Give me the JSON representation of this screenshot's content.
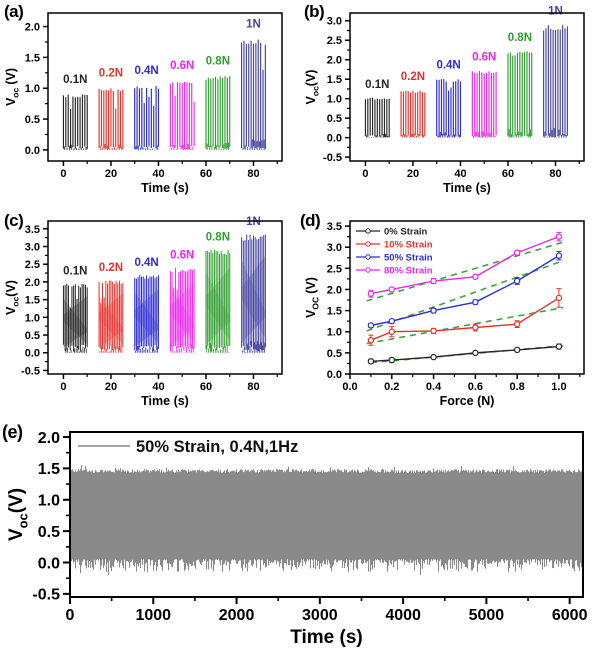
{
  "chart_data": [
    {
      "panel_label": "(a)",
      "type": "burst",
      "xlabel": "Time (s)",
      "ylabel": {
        "main": "V",
        "sub": "oc",
        "rest": " (V)"
      },
      "xlim": [
        -6.5,
        92
      ],
      "ylim": [
        -0.18,
        2.22
      ],
      "xticks": [
        0,
        20,
        40,
        60,
        80
      ],
      "xtick_labels": [
        "0",
        "20",
        "40",
        "60",
        "80"
      ],
      "yticks": [
        0,
        0.5,
        1,
        1.5,
        2
      ],
      "ytick_labels": [
        "0.0",
        "0.5",
        "1.0",
        "1.5",
        "2.0"
      ],
      "xminor": 10,
      "yminor": 0.25,
      "spikes": 11,
      "label_offset": 0.14,
      "wedge": false,
      "bursts": [
        {
          "label": "0.1N",
          "color": "#262626",
          "t_start": 0,
          "t_end": 10,
          "amplitude": 0.9
        },
        {
          "label": "0.2N",
          "color": "#e8302a",
          "t_start": 15,
          "t_end": 25,
          "amplitude": 1.0
        },
        {
          "label": "0.4N",
          "color": "#2c2cd8",
          "t_start": 30,
          "t_end": 40,
          "amplitude": 1.04
        },
        {
          "label": "0.6N",
          "color": "#ee24ee",
          "t_start": 45,
          "t_end": 55,
          "amplitude": 1.12
        },
        {
          "label": "0.8N",
          "color": "#2f9e2f",
          "t_start": 60,
          "t_end": 70,
          "amplitude": 1.2
        },
        {
          "label": "1N",
          "color": "#44449f",
          "t_start": 75,
          "t_end": 85,
          "amplitude": 1.8
        }
      ]
    },
    {
      "panel_label": "(b)",
      "type": "burst",
      "xlabel": "Time (s)",
      "ylabel": {
        "main": "V",
        "sub": "oc",
        "rest": "(V)"
      },
      "xlim": [
        -6.5,
        92
      ],
      "ylim": [
        -0.6,
        3.2
      ],
      "xticks": [
        0,
        20,
        40,
        60,
        80
      ],
      "xtick_labels": [
        "0",
        "20",
        "40",
        "60",
        "80"
      ],
      "yticks": [
        -0.5,
        0,
        0.5,
        1,
        1.5,
        2,
        2.5,
        3
      ],
      "ytick_labels": [
        "-0.5",
        "0.0",
        "0.5",
        "1.0",
        "1.5",
        "2.0",
        "2.5",
        "3.0"
      ],
      "xminor": 10,
      "yminor": 0.25,
      "spikes": 11,
      "label_offset": 0.18,
      "wedge": false,
      "bursts": [
        {
          "label": "0.1N",
          "color": "#262626",
          "t_start": 0,
          "t_end": 10,
          "amplitude": 1.02
        },
        {
          "label": "0.2N",
          "color": "#e8302a",
          "t_start": 15,
          "t_end": 25,
          "amplitude": 1.22
        },
        {
          "label": "0.4N",
          "color": "#2c2cd8",
          "t_start": 30,
          "t_end": 40,
          "amplitude": 1.52
        },
        {
          "label": "0.6N",
          "color": "#ee24ee",
          "t_start": 45,
          "t_end": 55,
          "amplitude": 1.72
        },
        {
          "label": "0.8N",
          "color": "#2f9e2f",
          "t_start": 60,
          "t_end": 70,
          "amplitude": 2.22
        },
        {
          "label": "1N",
          "color": "#44449f",
          "t_start": 75,
          "t_end": 85,
          "amplitude": 2.9
        }
      ]
    },
    {
      "panel_label": "(c)",
      "type": "burst",
      "xlabel": "Time (s)",
      "ylabel": {
        "main": "V",
        "sub": "oc",
        "rest": "(V)"
      },
      "xlim": [
        -6.5,
        92
      ],
      "ylim": [
        -0.6,
        3.72
      ],
      "xticks": [
        0,
        20,
        40,
        60,
        80
      ],
      "xtick_labels": [
        "0",
        "20",
        "40",
        "60",
        "80"
      ],
      "yticks": [
        -0.5,
        0,
        0.5,
        1,
        1.5,
        2,
        2.5,
        3,
        3.5
      ],
      "ytick_labels": [
        "-0.5",
        "0.0",
        "0.5",
        "1.0",
        "1.5",
        "2.0",
        "2.5",
        "3.0",
        "3.5"
      ],
      "xminor": 10,
      "yminor": 0.25,
      "spikes": 15,
      "label_offset": 0.17,
      "wedge": true,
      "bursts": [
        {
          "label": "0.1N",
          "color": "#262626",
          "t_start": 0,
          "t_end": 10,
          "amplitude": 1.95
        },
        {
          "label": "0.2N",
          "color": "#e8302a",
          "t_start": 15,
          "t_end": 25,
          "amplitude": 2.05
        },
        {
          "label": "0.4N",
          "color": "#2c2cd8",
          "t_start": 30,
          "t_end": 40,
          "amplitude": 2.2
        },
        {
          "label": "0.6N",
          "color": "#ee24ee",
          "t_start": 45,
          "t_end": 55,
          "amplitude": 2.4
        },
        {
          "label": "0.8N",
          "color": "#2f9e2f",
          "t_start": 60,
          "t_end": 70,
          "amplitude": 2.92
        },
        {
          "label": "1N",
          "color": "#44449f",
          "t_start": 75,
          "t_end": 85,
          "amplitude": 3.35
        }
      ]
    },
    {
      "panel_label": "(d)",
      "type": "line",
      "xlabel": "Force (N)",
      "ylabel": {
        "main": "V",
        "sub": "OC",
        "rest": " (V)"
      },
      "xlim": [
        0,
        1.12
      ],
      "ylim": [
        0,
        3.62
      ],
      "xticks": [
        0,
        0.2,
        0.4,
        0.6,
        0.8,
        1.0
      ],
      "xtick_labels": [
        "0.0",
        "0.2",
        "0.4",
        "0.6",
        "0.8",
        "1.0"
      ],
      "yticks": [
        0,
        0.5,
        1,
        1.5,
        2,
        2.5,
        3,
        3.5
      ],
      "ytick_labels": [
        "0.0",
        "0.5",
        "1.0",
        "1.5",
        "2.0",
        "2.5",
        "3.0",
        "3.5"
      ],
      "xminor": 0.1,
      "yminor": 0.25,
      "x": [
        0.1,
        0.2,
        0.4,
        0.6,
        0.8,
        1.0
      ],
      "series": [
        {
          "name": "0% Strain",
          "color": "#262626",
          "values": [
            0.3,
            0.33,
            0.4,
            0.5,
            0.57,
            0.65
          ],
          "errors": [
            0.05,
            0.05,
            0.04,
            0.04,
            0.04,
            0.06
          ]
        },
        {
          "name": "10% Strain",
          "color": "#e8302a",
          "values": [
            0.8,
            1.0,
            1.02,
            1.1,
            1.18,
            1.8
          ],
          "errors": [
            0.12,
            0.12,
            0.06,
            0.08,
            0.08,
            0.22
          ]
        },
        {
          "name": "50% Strain",
          "color": "#2c2cd8",
          "values": [
            1.15,
            1.25,
            1.5,
            1.7,
            2.2,
            2.8
          ],
          "errors": [
            0.05,
            0.04,
            0.05,
            0.05,
            0.08,
            0.1
          ]
        },
        {
          "name": "80% Strain",
          "color": "#ee24ee",
          "values": [
            1.9,
            2.0,
            2.2,
            2.3,
            2.87,
            3.25
          ],
          "errors": [
            0.08,
            0.04,
            0.06,
            0.04,
            0.05,
            0.1
          ]
        }
      ],
      "fit_lines": {
        "color": "#3aa63a",
        "segments": [
          [
            0.1,
            0.27,
            1.02,
            0.67
          ],
          [
            0.08,
            0.72,
            1.02,
            1.57
          ],
          [
            0.08,
            1.02,
            1.02,
            2.68
          ],
          [
            0.08,
            1.73,
            1.02,
            3.12
          ]
        ]
      }
    },
    {
      "panel_label": "(e)",
      "type": "noise",
      "xlabel": "Time (s)",
      "ylabel": {
        "main": "V",
        "sub": "oc",
        "rest": "(V)"
      },
      "xlim": [
        0,
        6160
      ],
      "ylim": [
        -0.55,
        2.08
      ],
      "xticks": [
        0,
        1000,
        2000,
        3000,
        4000,
        5000,
        6000
      ],
      "xtick_labels": [
        "0",
        "1000",
        "2000",
        "3000",
        "4000",
        "5000",
        "6000"
      ],
      "yticks": [
        -0.5,
        0,
        0.5,
        1,
        1.5,
        2
      ],
      "ytick_labels": [
        "-0.5",
        "0.0",
        "0.5",
        "1.0",
        "1.5",
        "2.0"
      ],
      "xminor": 500,
      "yminor": 0.25,
      "legend_label": "50% Strain, 0.4N,1Hz",
      "band": {
        "color": "#8a8a8a",
        "legend_line_color": "#9a9a9a",
        "top_mean": 1.45,
        "top_jitter": 0.06,
        "bottom_mean": 0.05,
        "bottom_jitter": 0.2
      }
    }
  ]
}
